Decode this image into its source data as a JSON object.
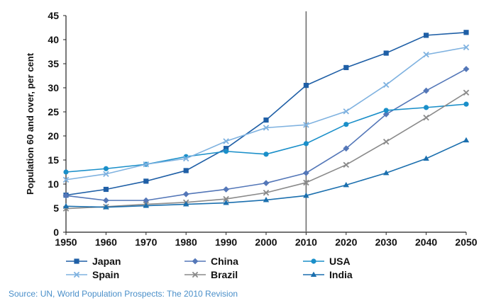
{
  "chart_data": {
    "type": "line",
    "title": "",
    "xlabel": "",
    "ylabel": "Population 60 and over, per cent",
    "x": [
      1950,
      1960,
      1970,
      1980,
      1990,
      2000,
      2010,
      2020,
      2030,
      2040,
      2050
    ],
    "xlim": [
      1950,
      2050
    ],
    "ylim": [
      0,
      45
    ],
    "yticks": [
      0,
      5,
      10,
      15,
      20,
      25,
      30,
      35,
      40,
      45
    ],
    "grid": false,
    "reference_line_x": 2010,
    "legend_position": "bottom",
    "series": [
      {
        "name": "Japan",
        "color": "#1f5fa6",
        "marker": "square",
        "values": [
          7.7,
          8.9,
          10.6,
          12.8,
          17.4,
          23.3,
          30.5,
          34.2,
          37.2,
          40.9,
          41.5
        ]
      },
      {
        "name": "China",
        "color": "#5477b8",
        "marker": "diamond",
        "values": [
          7.6,
          6.6,
          6.6,
          7.9,
          8.9,
          10.2,
          12.3,
          17.4,
          24.5,
          29.4,
          33.9
        ]
      },
      {
        "name": "USA",
        "color": "#1a8fc9",
        "marker": "circle",
        "values": [
          12.5,
          13.2,
          14.1,
          15.7,
          16.8,
          16.2,
          18.4,
          22.4,
          25.3,
          25.9,
          26.6
        ]
      },
      {
        "name": "Spain",
        "color": "#7fb2e0",
        "marker": "x",
        "values": [
          10.9,
          12.1,
          14.1,
          15.3,
          18.9,
          21.7,
          22.3,
          25.1,
          30.6,
          36.9,
          38.4
        ]
      },
      {
        "name": "Brazil",
        "color": "#8a8a8a",
        "marker": "x",
        "values": [
          4.9,
          5.3,
          5.8,
          6.2,
          6.9,
          8.2,
          10.3,
          14.0,
          18.8,
          23.8,
          29.0
        ]
      },
      {
        "name": "India",
        "color": "#1b6fae",
        "marker": "triangle",
        "values": [
          5.4,
          5.2,
          5.5,
          5.8,
          6.1,
          6.7,
          7.6,
          9.8,
          12.3,
          15.3,
          19.1
        ]
      }
    ]
  },
  "source_note": "Source: UN, World Population Prospects: The 2010 Revision"
}
